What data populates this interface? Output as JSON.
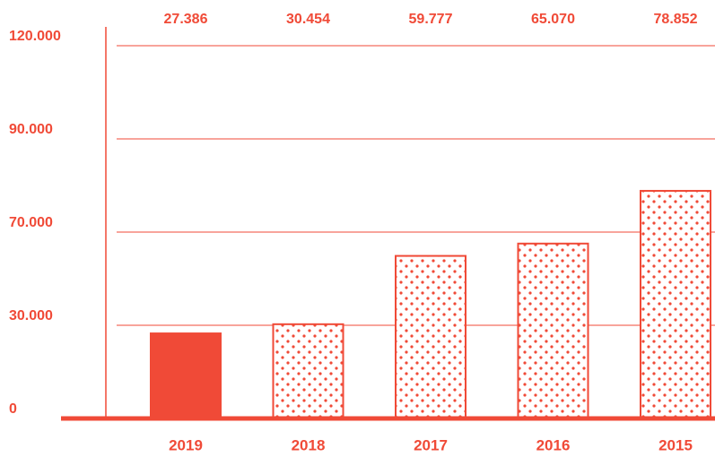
{
  "chart_data": {
    "type": "bar",
    "categories": [
      "2019",
      "2018",
      "2017",
      "2016",
      "2015"
    ],
    "values": [
      27386,
      30454,
      59777,
      65070,
      78852
    ],
    "value_labels": [
      "27.386",
      "30.454",
      "59.777",
      "65.070",
      "78.852"
    ],
    "fills": [
      "solid",
      "dots",
      "dots",
      "dots",
      "dots"
    ],
    "color": "#f04a37",
    "ylim": [
      0,
      120000
    ],
    "yticks": [
      0,
      {
        "value": 30000,
        "label": "30.000"
      },
      {
        "value": 70000,
        "label": "70.000"
      },
      {
        "value": 90000,
        "label": "90.000"
      },
      {
        "value": 120000,
        "label": "120.000"
      }
    ],
    "grid": true
  }
}
